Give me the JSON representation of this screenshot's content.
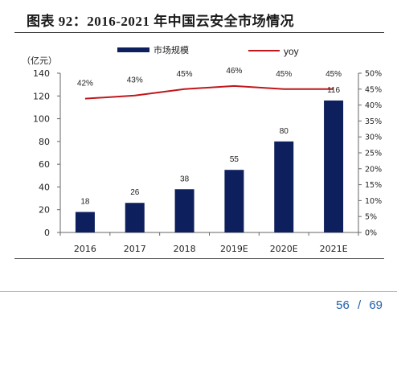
{
  "header": {
    "title": "图表 92：2016-2021 年中国云安全市场情况"
  },
  "footer": {
    "page_current": "56",
    "page_separator": "/",
    "page_total": "69"
  },
  "colors": {
    "bar": "#0d1f5c",
    "line": "#c0171c",
    "axis": "#666666",
    "text": "#222222"
  },
  "chart_data": {
    "type": "bar",
    "title": "",
    "categories": [
      "2016",
      "2017",
      "2018",
      "2019E",
      "2020E",
      "2021E"
    ],
    "series": [
      {
        "name": "市场规模",
        "type": "bar",
        "axis": "left",
        "values": [
          18,
          26,
          38,
          55,
          80,
          116
        ]
      },
      {
        "name": "yoy",
        "type": "line",
        "axis": "right",
        "values": [
          42,
          43,
          45,
          46,
          45,
          45
        ]
      }
    ],
    "bar_labels": [
      "18",
      "26",
      "38",
      "55",
      "80",
      "116"
    ],
    "line_labels": [
      "42%",
      "43%",
      "45%",
      "46%",
      "45%",
      "45%"
    ],
    "ylabel_left": "（亿元）",
    "ylim_left": [
      0,
      140
    ],
    "yticks_left": [
      "0",
      "20",
      "40",
      "60",
      "80",
      "100",
      "120",
      "140"
    ],
    "ylim_right": [
      0,
      50
    ],
    "yticks_right": [
      "0%",
      "5%",
      "10%",
      "15%",
      "20%",
      "25%",
      "30%",
      "35%",
      "40%",
      "45%",
      "50%"
    ],
    "legend": "top-center",
    "grid": false
  }
}
